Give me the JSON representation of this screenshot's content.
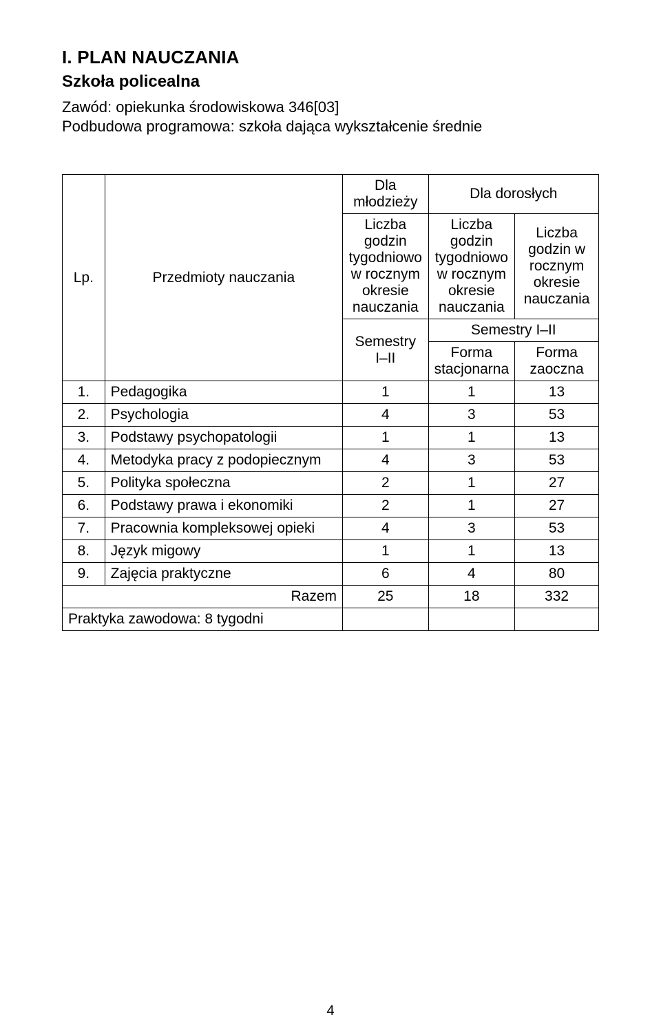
{
  "header": {
    "section_title": "I. PLAN NAUCZANIA",
    "subtitle": "Szkoła policealna",
    "line1": "Zawód: opiekunka środowiskowa 346[03]",
    "line2": "Podbudowa programowa: szkoła dająca wykształcenie średnie"
  },
  "table": {
    "head": {
      "lp": "Lp.",
      "subjects": "Przedmioty nauczania",
      "youth_col": "Dla młodzieży",
      "adults_col": "Dla dorosłych",
      "youth_sub": "Liczba godzin tygodniowo w rocznym okresie nauczania",
      "adults_left": "Liczba godzin tygodniowo w rocznym okresie nauczania",
      "adults_right": "Liczba godzin w rocznym okresie nauczania",
      "sem_youth": "Semestry I–II",
      "sem_adults": "Semestry I–II",
      "form_stat": "Forma stacjonarna",
      "form_zao": "Forma zaoczna"
    },
    "rows": [
      {
        "n": "1.",
        "name": "Pedagogika",
        "a": "1",
        "b": "1",
        "c": "13"
      },
      {
        "n": "2.",
        "name": "Psychologia",
        "a": "4",
        "b": "3",
        "c": "53"
      },
      {
        "n": "3.",
        "name": "Podstawy psychopatologii",
        "a": "1",
        "b": "1",
        "c": "13"
      },
      {
        "n": "4.",
        "name": "Metodyka pracy z podopiecznym",
        "a": "4",
        "b": "3",
        "c": "53"
      },
      {
        "n": "5.",
        "name": "Polityka społeczna",
        "a": "2",
        "b": "1",
        "c": "27"
      },
      {
        "n": "6.",
        "name": "Podstawy prawa i ekonomiki",
        "a": "2",
        "b": "1",
        "c": "27"
      },
      {
        "n": "7.",
        "name": "Pracownia kompleksowej opieki",
        "a": "4",
        "b": "3",
        "c": "53"
      },
      {
        "n": "8.",
        "name": "Język migowy",
        "a": "1",
        "b": "1",
        "c": "13"
      },
      {
        "n": "9.",
        "name": "Zajęcia praktyczne",
        "a": "6",
        "b": "4",
        "c": "80"
      }
    ],
    "total": {
      "label": "Razem",
      "a": "25",
      "b": "18",
      "c": "332"
    },
    "practice": "Praktyka zawodowa: 8 tygodni"
  },
  "page_number": "4"
}
